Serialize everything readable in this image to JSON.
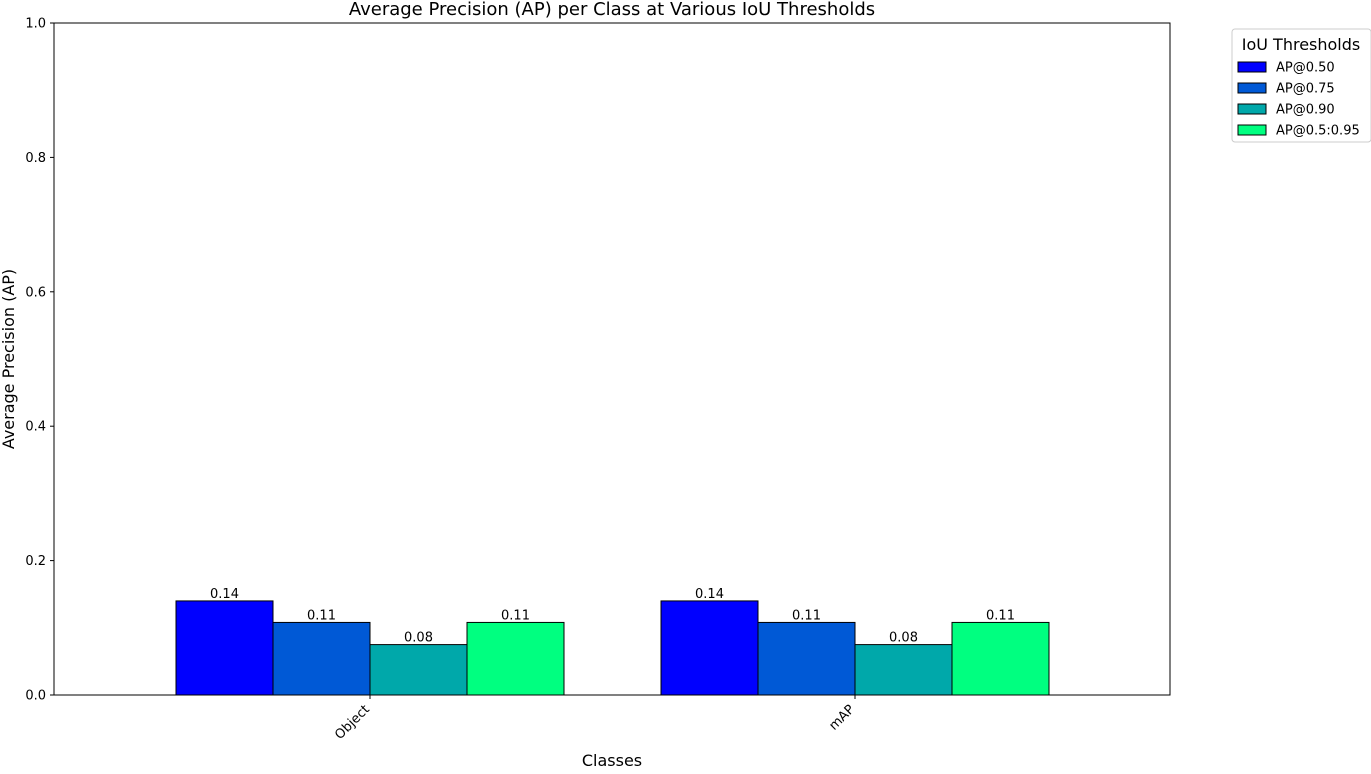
{
  "chart_data": {
    "type": "bar",
    "title": "Average Precision (AP) per Class at Various IoU Thresholds",
    "xlabel": "Classes",
    "ylabel": "Average Precision (AP)",
    "categories": [
      "Object",
      "mAP"
    ],
    "ylim": [
      0,
      1.0
    ],
    "yticks": [
      "0.0",
      "0.2",
      "0.4",
      "0.6",
      "0.8",
      "1.0"
    ],
    "series": [
      {
        "name": "AP@0.50",
        "values": [
          0.14,
          0.14
        ],
        "labels": [
          "0.14",
          "0.14"
        ],
        "color": "#0000ff"
      },
      {
        "name": "AP@0.75",
        "values": [
          0.108,
          0.108
        ],
        "labels": [
          "0.11",
          "0.11"
        ],
        "color": "#0059d6"
      },
      {
        "name": "AP@0.90",
        "values": [
          0.075,
          0.075
        ],
        "labels": [
          "0.08",
          "0.08"
        ],
        "color": "#00a8aa"
      },
      {
        "name": "AP@0.5:0.95",
        "values": [
          0.108,
          0.108
        ],
        "labels": [
          "0.11",
          "0.11"
        ],
        "color": "#00ff80"
      }
    ],
    "legend": {
      "title": "IoU Thresholds",
      "placement": "outside-top-right"
    },
    "grid": false
  }
}
